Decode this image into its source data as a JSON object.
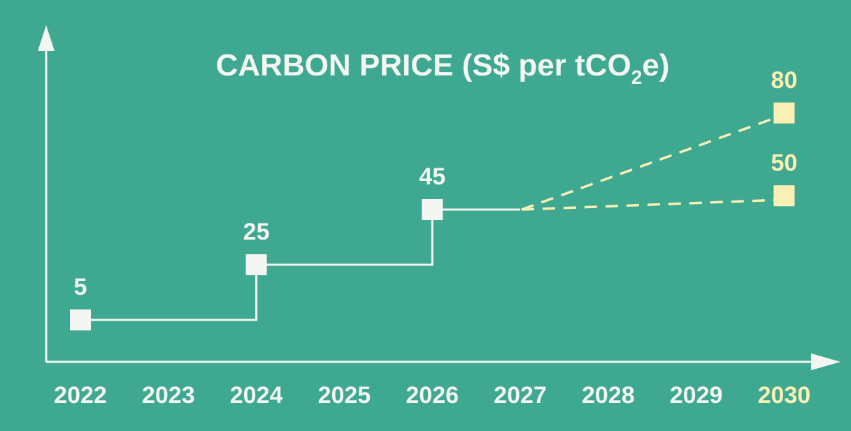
{
  "colors": {
    "background": "#3ea891",
    "actual": "#f3f6f1",
    "projected": "#fbf0b4"
  },
  "chart_data": {
    "type": "line",
    "title_main": "CARBON PRICE (S$ per tCO",
    "title_sub": "2",
    "title_end": "e)",
    "xlabel": "",
    "ylabel": "",
    "categories": [
      "2022",
      "2023",
      "2024",
      "2025",
      "2026",
      "2027",
      "2028",
      "2029",
      "2030"
    ],
    "highlighted_category": "2030",
    "step_line": [
      {
        "year": 2022,
        "value": 5
      },
      {
        "year": 2024,
        "value": 25
      },
      {
        "year": 2026,
        "value": 45
      },
      {
        "year": 2027,
        "value": 45
      }
    ],
    "series": [
      {
        "points": [
          {
            "x": "2022",
            "y": 5
          },
          {
            "x": "2024",
            "y": 25
          },
          {
            "x": "2026",
            "y": 45
          }
        ],
        "style": "solid",
        "labels": [
          "5",
          "25",
          "45"
        ]
      },
      {
        "points": [
          {
            "x": "2027",
            "y": 45
          },
          {
            "x": "2030",
            "y": 80
          }
        ],
        "style": "dashed",
        "labels": [
          "80"
        ]
      },
      {
        "points": [
          {
            "x": "2027",
            "y": 45
          },
          {
            "x": "2030",
            "y": 50
          }
        ],
        "style": "dashed",
        "labels": [
          "50"
        ]
      }
    ],
    "grid": false
  }
}
